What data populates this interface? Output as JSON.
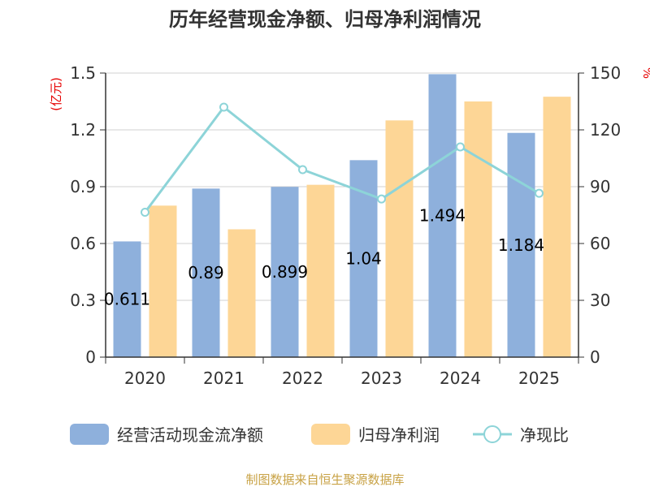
{
  "chart_data": {
    "type": "bar",
    "title": "历年经营现金净额、归母净利润情况",
    "categories": [
      "2020",
      "2021",
      "2022",
      "2023",
      "2024",
      "2025"
    ],
    "left_axis": {
      "unit": "(亿元)",
      "ylim": [
        0,
        1.5
      ],
      "ticks": [
        "0",
        "0.3",
        "0.6",
        "0.9",
        "1.2",
        "1.5"
      ]
    },
    "right_axis": {
      "unit": "%",
      "ylim": [
        0,
        150
      ],
      "ticks": [
        "0",
        "30",
        "60",
        "90",
        "120",
        "150"
      ]
    },
    "series": [
      {
        "name": "经营活动现金流净额",
        "type": "bar",
        "axis": "left",
        "color": "#8eb0dc",
        "values": [
          0.611,
          0.89,
          0.899,
          1.04,
          1.494,
          1.184
        ],
        "labels": [
          "0.611",
          "0.89",
          "0.899",
          "1.04",
          "1.494",
          "1.184"
        ]
      },
      {
        "name": "归母净利润",
        "type": "bar",
        "axis": "left",
        "color": "#fdd696",
        "values": [
          0.8,
          0.675,
          0.91,
          1.25,
          1.35,
          1.375
        ]
      },
      {
        "name": "净现比",
        "type": "line",
        "axis": "right",
        "color": "#8dd4d8",
        "values": [
          76.5,
          132,
          99,
          83.5,
          111,
          86.5
        ]
      }
    ],
    "grid": true,
    "legend_position": "bottom"
  },
  "source_text": "制图数据来自恒生聚源数据库"
}
